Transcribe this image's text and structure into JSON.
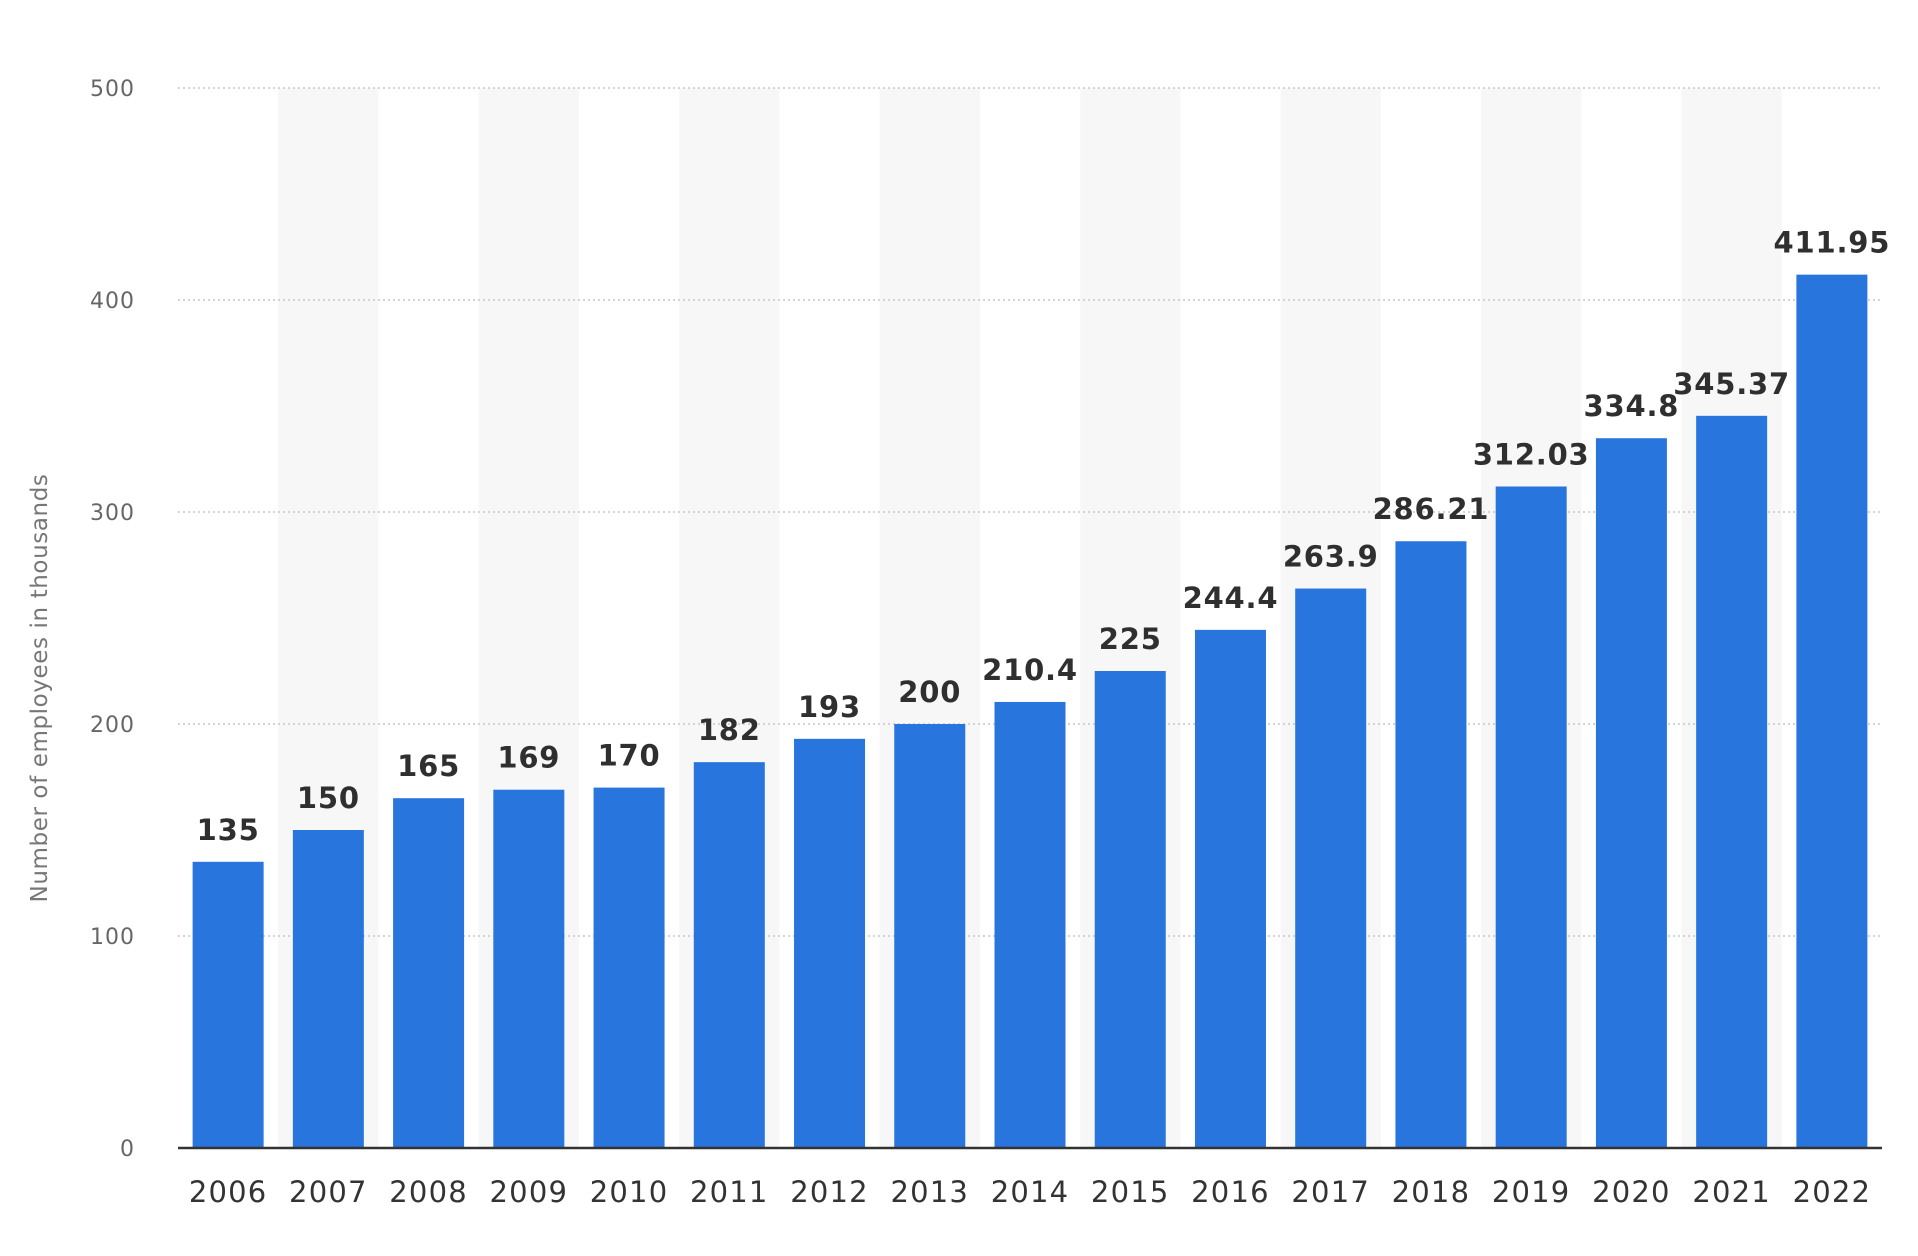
{
  "chart_data": {
    "type": "bar",
    "categories": [
      "2006",
      "2007",
      "2008",
      "2009",
      "2010",
      "2011",
      "2012",
      "2013",
      "2014",
      "2015",
      "2016",
      "2017",
      "2018",
      "2019",
      "2020",
      "2021",
      "2022"
    ],
    "values": [
      135,
      150,
      165,
      169,
      170,
      182,
      193,
      200,
      210.4,
      225,
      244.4,
      263.9,
      286.21,
      312.03,
      334.8,
      345.37,
      411.95
    ],
    "data_labels": [
      "135",
      "150",
      "165",
      "169",
      "170",
      "182",
      "193",
      "200",
      "210.4",
      "225",
      "244.4",
      "263.9",
      "286.21",
      "312.03",
      "334.8",
      "345.37",
      "411.95"
    ],
    "ylabel": "Number of employees in thousands",
    "yticks": [
      0,
      100,
      200,
      300,
      400,
      500
    ],
    "ylim": [
      0,
      500
    ],
    "grid": true,
    "bar_color": "#2875de",
    "band_color": "#f7f7f8"
  }
}
